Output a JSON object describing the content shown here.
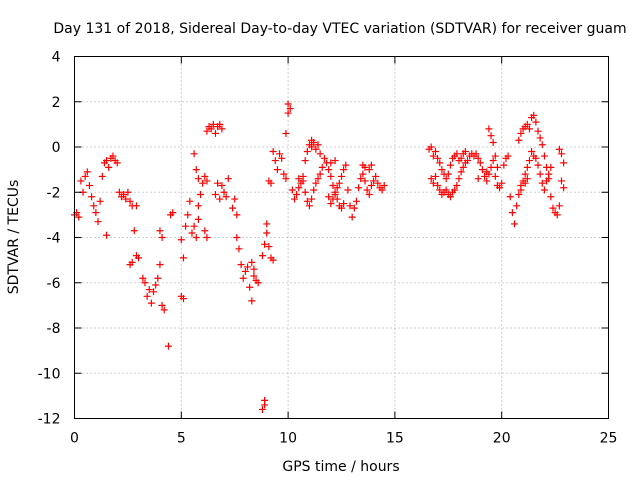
{
  "chart_data": {
    "type": "scatter",
    "title": "Day 131 of 2018, Sidereal Day-to-day VTEC variation (SDTVAR) for receiver guam",
    "xlabel": "GPS time / hours",
    "ylabel": "SDTVAR / TECUs",
    "xlim": [
      0,
      25
    ],
    "ylim": [
      -12,
      4
    ],
    "xticks": [
      "0",
      "5",
      "10",
      "15",
      "20",
      "25"
    ],
    "yticks": [
      "4",
      "2",
      "0",
      "-2",
      "-4",
      "-6",
      "-8",
      "-10",
      "-12"
    ],
    "grid": true,
    "marker": "plus",
    "color": "#ff0000",
    "series": [
      {
        "name": "SDTVAR",
        "points": [
          [
            0.0,
            -3.0
          ],
          [
            0.1,
            -2.9
          ],
          [
            0.2,
            -3.1
          ],
          [
            0.3,
            -1.5
          ],
          [
            0.4,
            -2.0
          ],
          [
            0.5,
            -1.3
          ],
          [
            0.6,
            -1.1
          ],
          [
            0.7,
            -1.7
          ],
          [
            0.8,
            -2.2
          ],
          [
            0.9,
            -2.6
          ],
          [
            1.0,
            -2.9
          ],
          [
            1.1,
            -3.3
          ],
          [
            1.2,
            -2.4
          ],
          [
            1.3,
            -1.3
          ],
          [
            1.4,
            -0.7
          ],
          [
            1.5,
            -0.6
          ],
          [
            1.6,
            -0.9
          ],
          [
            1.7,
            -0.5
          ],
          [
            1.8,
            -0.4
          ],
          [
            1.9,
            -0.6
          ],
          [
            2.0,
            -0.7
          ],
          [
            2.1,
            -2.0
          ],
          [
            2.2,
            -2.2
          ],
          [
            2.3,
            -2.1
          ],
          [
            2.4,
            -2.3
          ],
          [
            2.5,
            -2.0
          ],
          [
            2.6,
            -2.4
          ],
          [
            2.7,
            -2.6
          ],
          [
            2.8,
            -3.7
          ],
          [
            2.9,
            -2.6
          ],
          [
            1.5,
            -3.9
          ],
          [
            2.6,
            -5.2
          ],
          [
            2.7,
            -5.1
          ],
          [
            2.9,
            -4.8
          ],
          [
            3.0,
            -4.9
          ],
          [
            3.2,
            -5.8
          ],
          [
            3.3,
            -6.0
          ],
          [
            3.4,
            -6.6
          ],
          [
            3.5,
            -6.3
          ],
          [
            3.6,
            -6.9
          ],
          [
            3.7,
            -6.4
          ],
          [
            3.8,
            -6.1
          ],
          [
            3.9,
            -5.8
          ],
          [
            4.0,
            -5.2
          ],
          [
            4.1,
            -7.0
          ],
          [
            4.2,
            -7.2
          ],
          [
            4.0,
            -3.7
          ],
          [
            4.1,
            -4.0
          ],
          [
            4.4,
            -8.8
          ],
          [
            4.5,
            -3.0
          ],
          [
            4.6,
            -2.9
          ],
          [
            5.0,
            -6.6
          ],
          [
            5.1,
            -6.7
          ],
          [
            5.0,
            -4.1
          ],
          [
            5.1,
            -4.9
          ],
          [
            5.2,
            -3.5
          ],
          [
            5.3,
            -3.0
          ],
          [
            5.4,
            -2.4
          ],
          [
            5.5,
            -3.8
          ],
          [
            5.6,
            -3.5
          ],
          [
            5.7,
            -4.0
          ],
          [
            5.8,
            -3.2
          ],
          [
            5.6,
            -0.3
          ],
          [
            5.7,
            -1.0
          ],
          [
            5.8,
            -1.4
          ],
          [
            5.9,
            -2.1
          ],
          [
            5.8,
            -2.6
          ],
          [
            6.0,
            -1.6
          ],
          [
            6.1,
            -1.3
          ],
          [
            6.2,
            -1.5
          ],
          [
            6.2,
            0.7
          ],
          [
            6.3,
            0.9
          ],
          [
            6.4,
            0.8
          ],
          [
            6.5,
            1.0
          ],
          [
            6.6,
            0.6
          ],
          [
            6.7,
            0.9
          ],
          [
            6.8,
            1.0
          ],
          [
            6.9,
            0.8
          ],
          [
            6.6,
            -2.1
          ],
          [
            6.7,
            -1.6
          ],
          [
            6.8,
            -2.3
          ],
          [
            6.9,
            -1.7
          ],
          [
            7.0,
            -2.0
          ],
          [
            7.1,
            -2.2
          ],
          [
            7.2,
            -1.4
          ],
          [
            6.1,
            -3.7
          ],
          [
            6.2,
            -4.0
          ],
          [
            7.4,
            -2.7
          ],
          [
            7.5,
            -2.3
          ],
          [
            7.6,
            -3.0
          ],
          [
            7.6,
            -4.0
          ],
          [
            7.7,
            -4.5
          ],
          [
            7.8,
            -5.2
          ],
          [
            7.9,
            -5.8
          ],
          [
            8.0,
            -5.5
          ],
          [
            8.1,
            -5.3
          ],
          [
            8.2,
            -6.2
          ],
          [
            8.3,
            -6.8
          ],
          [
            8.4,
            -5.7
          ],
          [
            8.5,
            -5.9
          ],
          [
            8.6,
            -6.0
          ],
          [
            8.3,
            -5.1
          ],
          [
            8.4,
            -5.4
          ],
          [
            8.8,
            -4.8
          ],
          [
            8.9,
            -4.3
          ],
          [
            9.0,
            -3.8
          ],
          [
            9.1,
            -4.4
          ],
          [
            9.2,
            -4.9
          ],
          [
            9.3,
            -5.0
          ],
          [
            9.0,
            -3.4
          ],
          [
            8.8,
            -11.6
          ],
          [
            8.9,
            -11.4
          ],
          [
            8.9,
            -11.2
          ],
          [
            9.3,
            -0.2
          ],
          [
            9.4,
            -0.6
          ],
          [
            9.5,
            -1.0
          ],
          [
            9.1,
            -1.5
          ],
          [
            9.2,
            -1.6
          ],
          [
            9.6,
            -0.3
          ],
          [
            9.7,
            -0.5
          ],
          [
            9.8,
            -1.2
          ],
          [
            9.9,
            -1.4
          ],
          [
            10.0,
            1.9
          ],
          [
            10.1,
            1.7
          ],
          [
            10.0,
            1.5
          ],
          [
            9.9,
            0.6
          ],
          [
            10.2,
            -1.9
          ],
          [
            10.3,
            -2.3
          ],
          [
            10.4,
            -2.1
          ],
          [
            10.5,
            -1.8
          ],
          [
            10.6,
            -1.6
          ],
          [
            10.7,
            -1.3
          ],
          [
            10.8,
            -0.6
          ],
          [
            10.9,
            -0.2
          ],
          [
            11.0,
            0.1
          ],
          [
            11.1,
            0.0
          ],
          [
            11.2,
            0.2
          ],
          [
            11.3,
            -0.1
          ],
          [
            11.4,
            0.1
          ],
          [
            11.5,
            -0.3
          ],
          [
            10.7,
            -1.5
          ],
          [
            10.8,
            -2.0
          ],
          [
            10.9,
            -2.4
          ],
          [
            11.0,
            -2.6
          ],
          [
            11.1,
            -2.3
          ],
          [
            11.2,
            -1.9
          ],
          [
            11.3,
            -1.6
          ],
          [
            11.4,
            -1.4
          ],
          [
            11.5,
            -1.2
          ],
          [
            11.6,
            -0.9
          ],
          [
            11.7,
            -0.5
          ],
          [
            11.8,
            -0.7
          ],
          [
            11.9,
            -1.0
          ],
          [
            12.0,
            -1.3
          ],
          [
            12.1,
            -1.7
          ],
          [
            12.2,
            -2.0
          ],
          [
            12.3,
            -2.3
          ],
          [
            12.4,
            -2.6
          ],
          [
            12.5,
            -2.7
          ],
          [
            12.6,
            -2.5
          ],
          [
            11.9,
            -2.2
          ],
          [
            12.0,
            -2.5
          ],
          [
            12.1,
            -2.3
          ],
          [
            12.2,
            -2.1
          ],
          [
            12.3,
            -1.8
          ],
          [
            12.4,
            -1.6
          ],
          [
            12.5,
            -1.3
          ],
          [
            12.6,
            -1.0
          ],
          [
            12.7,
            -0.8
          ],
          [
            12.8,
            -1.9
          ],
          [
            12.9,
            -2.6
          ],
          [
            13.0,
            -3.1
          ],
          [
            13.1,
            -2.7
          ],
          [
            13.2,
            -2.4
          ],
          [
            13.3,
            -1.8
          ],
          [
            13.4,
            -1.4
          ],
          [
            13.5,
            -1.2
          ],
          [
            13.6,
            -1.5
          ],
          [
            13.7,
            -1.9
          ],
          [
            13.8,
            -2.1
          ],
          [
            13.9,
            -1.7
          ],
          [
            14.0,
            -1.5
          ],
          [
            14.1,
            -1.3
          ],
          [
            14.2,
            -1.6
          ],
          [
            14.3,
            -1.8
          ],
          [
            14.4,
            -1.9
          ],
          [
            14.5,
            -1.7
          ],
          [
            13.5,
            -0.8
          ],
          [
            13.6,
            -0.9
          ],
          [
            13.8,
            -1.0
          ],
          [
            13.9,
            -0.8
          ],
          [
            12.0,
            -0.7
          ],
          [
            12.2,
            -0.6
          ],
          [
            11.1,
            0.3
          ],
          [
            10.5,
            -1.4
          ],
          [
            16.6,
            -0.1
          ],
          [
            16.7,
            0.0
          ],
          [
            16.8,
            -0.4
          ],
          [
            16.9,
            -0.2
          ],
          [
            17.0,
            -0.5
          ],
          [
            17.1,
            -0.7
          ],
          [
            17.2,
            -1.0
          ],
          [
            17.3,
            -1.2
          ],
          [
            17.4,
            -1.4
          ],
          [
            17.5,
            -1.2
          ],
          [
            16.7,
            -1.4
          ],
          [
            16.8,
            -1.6
          ],
          [
            16.9,
            -1.3
          ],
          [
            17.0,
            -1.7
          ],
          [
            17.1,
            -1.9
          ],
          [
            17.2,
            -2.1
          ],
          [
            17.3,
            -2.0
          ],
          [
            17.4,
            -1.9
          ],
          [
            17.5,
            -2.1
          ],
          [
            17.6,
            -2.2
          ],
          [
            17.7,
            -2.0
          ],
          [
            17.8,
            -1.9
          ],
          [
            17.9,
            -1.7
          ],
          [
            18.0,
            -1.4
          ],
          [
            18.1,
            -1.1
          ],
          [
            18.2,
            -0.9
          ],
          [
            18.3,
            -0.7
          ],
          [
            18.4,
            -0.6
          ],
          [
            18.5,
            -0.4
          ],
          [
            18.6,
            -0.3
          ],
          [
            17.6,
            -0.8
          ],
          [
            17.7,
            -0.5
          ],
          [
            17.8,
            -0.4
          ],
          [
            17.9,
            -0.3
          ],
          [
            18.0,
            -0.6
          ],
          [
            18.1,
            -0.5
          ],
          [
            18.2,
            -0.3
          ],
          [
            18.3,
            -0.2
          ],
          [
            18.7,
            -0.4
          ],
          [
            18.8,
            -0.3
          ],
          [
            18.9,
            -0.5
          ],
          [
            19.0,
            -0.7
          ],
          [
            19.1,
            -1.0
          ],
          [
            19.2,
            -1.3
          ],
          [
            19.3,
            -1.5
          ],
          [
            19.4,
            -1.2
          ],
          [
            19.5,
            -0.9
          ],
          [
            19.6,
            -0.6
          ],
          [
            19.7,
            -0.4
          ],
          [
            19.8,
            -0.9
          ],
          [
            19.4,
            0.8
          ],
          [
            19.5,
            0.5
          ],
          [
            19.6,
            0.2
          ],
          [
            19.7,
            -1.3
          ],
          [
            19.8,
            -1.7
          ],
          [
            19.9,
            -1.8
          ],
          [
            20.0,
            -1.6
          ],
          [
            20.1,
            -0.8
          ],
          [
            20.2,
            -0.5
          ],
          [
            20.3,
            -0.4
          ],
          [
            20.4,
            -2.2
          ],
          [
            20.5,
            -2.9
          ],
          [
            20.6,
            -3.4
          ],
          [
            20.7,
            -2.6
          ],
          [
            20.8,
            -2.1
          ],
          [
            20.9,
            -1.7
          ],
          [
            21.0,
            -1.5
          ],
          [
            21.1,
            -1.2
          ],
          [
            21.2,
            -0.9
          ],
          [
            21.3,
            -0.6
          ],
          [
            20.8,
            0.3
          ],
          [
            20.9,
            0.6
          ],
          [
            21.0,
            0.8
          ],
          [
            21.1,
            0.9
          ],
          [
            21.2,
            1.0
          ],
          [
            21.3,
            0.8
          ],
          [
            21.4,
            1.3
          ],
          [
            21.5,
            1.4
          ],
          [
            21.6,
            1.1
          ],
          [
            21.7,
            0.7
          ],
          [
            21.8,
            0.4
          ],
          [
            21.9,
            0.1
          ],
          [
            22.0,
            -0.4
          ],
          [
            22.1,
            -0.9
          ],
          [
            22.2,
            -1.4
          ],
          [
            22.3,
            -2.2
          ],
          [
            22.4,
            -2.7
          ],
          [
            22.5,
            -2.9
          ],
          [
            22.6,
            -3.0
          ],
          [
            22.7,
            -2.6
          ],
          [
            21.4,
            -0.2
          ],
          [
            21.5,
            -0.4
          ],
          [
            21.6,
            -0.5
          ],
          [
            21.7,
            -0.8
          ],
          [
            21.8,
            -1.2
          ],
          [
            21.9,
            -1.6
          ],
          [
            22.0,
            -1.9
          ],
          [
            22.1,
            -1.5
          ],
          [
            22.2,
            -1.2
          ],
          [
            22.3,
            -0.9
          ],
          [
            22.8,
            -0.3
          ],
          [
            22.9,
            -0.7
          ],
          [
            22.8,
            -1.5
          ],
          [
            22.9,
            -1.8
          ],
          [
            22.7,
            -0.1
          ],
          [
            21.1,
            -1.6
          ],
          [
            21.2,
            -1.4
          ],
          [
            20.9,
            -1.9
          ],
          [
            19.3,
            -1.1
          ],
          [
            18.9,
            -1.4
          ]
        ]
      }
    ]
  }
}
